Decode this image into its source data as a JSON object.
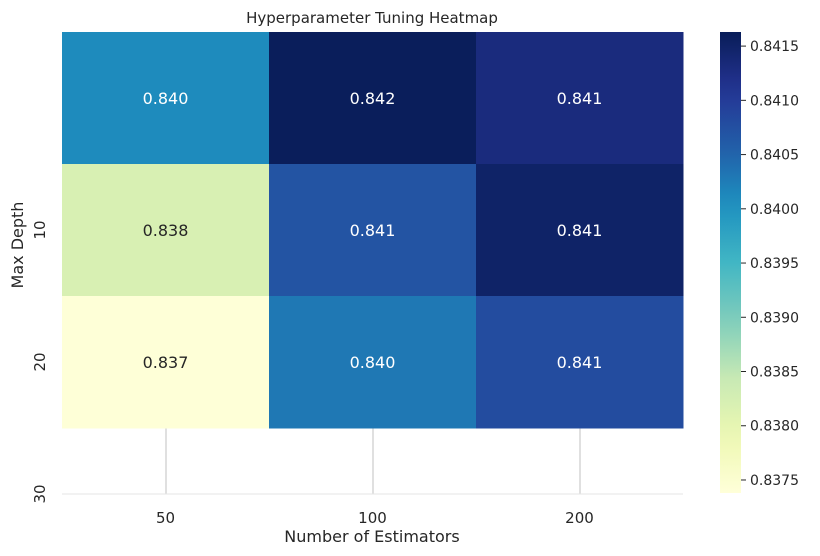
{
  "chart_data": {
    "type": "heatmap",
    "title": "Hyperparameter Tuning Heatmap",
    "xlabel": "Number of Estimators",
    "ylabel": "Max Depth",
    "x_categories": [
      "50",
      "100",
      "200"
    ],
    "y_tick_labels": [
      "10",
      "20",
      "30"
    ],
    "cell_labels": [
      [
        "0.840",
        "0.842",
        "0.841"
      ],
      [
        "0.838",
        "0.841",
        "0.841"
      ],
      [
        "0.837",
        "0.840",
        "0.841"
      ]
    ],
    "values": [
      [
        0.8401,
        0.8416,
        0.8413
      ],
      [
        0.8382,
        0.8407,
        0.8415
      ],
      [
        0.8374,
        0.8403,
        0.8408
      ]
    ],
    "colormap": "YlGnBu",
    "colorbar": {
      "range": [
        0.83738,
        0.84163
      ],
      "ticks": [
        "0.8375",
        "0.8380",
        "0.8385",
        "0.8390",
        "0.8395",
        "0.8400",
        "0.8405",
        "0.8410",
        "0.8415"
      ]
    },
    "grid": true
  }
}
